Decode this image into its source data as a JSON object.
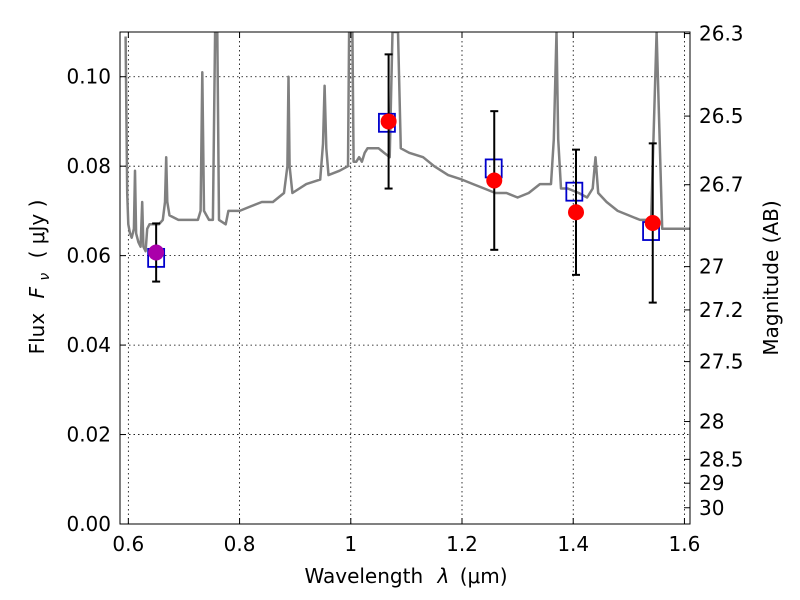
{
  "chart_data": {
    "type": "scatter",
    "xlabel_prefix": "Wavelength",
    "xlabel_symbol": "λ",
    "xlabel_unit": "(μm)",
    "ylabel_prefix": "Flux",
    "ylabel_symbol": "F",
    "ylabel_subscript": "ν",
    "ylabel_unit": "( μJy )",
    "y2label": "Magnitude (AB)",
    "xlim": [
      0.585,
      1.61
    ],
    "ylim": [
      0.0,
      0.11
    ],
    "grid": true,
    "x_ticks": [
      {
        "value": 0.6,
        "label": "0.6"
      },
      {
        "value": 0.8,
        "label": "0.8"
      },
      {
        "value": 1.0,
        "label": "1"
      },
      {
        "value": 1.2,
        "label": "1.2"
      },
      {
        "value": 1.4,
        "label": "1.4"
      },
      {
        "value": 1.6,
        "label": "1.6"
      }
    ],
    "y_ticks": [
      {
        "value": 0.0,
        "label": "0.00"
      },
      {
        "value": 0.02,
        "label": "0.02"
      },
      {
        "value": 0.04,
        "label": "0.04"
      },
      {
        "value": 0.06,
        "label": "0.06"
      },
      {
        "value": 0.08,
        "label": "0.08"
      },
      {
        "value": 0.1,
        "label": "0.10"
      }
    ],
    "y2_ticks": [
      {
        "mag": 26.3,
        "label": "26.3"
      },
      {
        "mag": 26.5,
        "label": "26.5"
      },
      {
        "mag": 26.7,
        "label": "26.7"
      },
      {
        "mag": 27.0,
        "label": "27"
      },
      {
        "mag": 27.2,
        "label": "27.2"
      },
      {
        "mag": 27.5,
        "label": "27.5"
      },
      {
        "mag": 28.0,
        "label": "28"
      },
      {
        "mag": 28.5,
        "label": "28.5"
      },
      {
        "mag": 29.0,
        "label": "29"
      },
      {
        "mag": 30.0,
        "label": "30"
      }
    ],
    "series": [
      {
        "kind": "line",
        "color": "#808080",
        "points": [
          [
            0.595,
            0.109
          ],
          [
            0.598,
            0.074
          ],
          [
            0.6,
            0.067
          ],
          [
            0.603,
            0.065
          ],
          [
            0.606,
            0.064
          ],
          [
            0.61,
            0.066
          ],
          [
            0.612,
            0.079
          ],
          [
            0.614,
            0.065
          ],
          [
            0.618,
            0.063
          ],
          [
            0.622,
            0.062
          ],
          [
            0.625,
            0.072
          ],
          [
            0.627,
            0.062
          ],
          [
            0.631,
            0.061
          ],
          [
            0.634,
            0.066
          ],
          [
            0.638,
            0.067
          ],
          [
            0.645,
            0.067
          ],
          [
            0.655,
            0.067
          ],
          [
            0.662,
            0.068
          ],
          [
            0.666,
            0.072
          ],
          [
            0.668,
            0.082
          ],
          [
            0.67,
            0.072
          ],
          [
            0.674,
            0.069
          ],
          [
            0.69,
            0.068
          ],
          [
            0.71,
            0.068
          ],
          [
            0.725,
            0.068
          ],
          [
            0.73,
            0.07
          ],
          [
            0.733,
            0.101
          ],
          [
            0.736,
            0.07
          ],
          [
            0.745,
            0.068
          ],
          [
            0.752,
            0.068
          ],
          [
            0.756,
            0.11
          ],
          [
            0.76,
            0.11
          ],
          [
            0.763,
            0.068
          ],
          [
            0.775,
            0.067
          ],
          [
            0.78,
            0.07
          ],
          [
            0.8,
            0.07
          ],
          [
            0.82,
            0.071
          ],
          [
            0.84,
            0.072
          ],
          [
            0.86,
            0.072
          ],
          [
            0.88,
            0.074
          ],
          [
            0.886,
            0.08
          ],
          [
            0.888,
            0.1
          ],
          [
            0.89,
            0.08
          ],
          [
            0.895,
            0.074
          ],
          [
            0.92,
            0.076
          ],
          [
            0.945,
            0.077
          ],
          [
            0.95,
            0.085
          ],
          [
            0.953,
            0.098
          ],
          [
            0.956,
            0.084
          ],
          [
            0.96,
            0.078
          ],
          [
            0.98,
            0.079
          ],
          [
            0.995,
            0.08
          ],
          [
            0.997,
            0.11
          ],
          [
            1.003,
            0.11
          ],
          [
            1.005,
            0.081
          ],
          [
            1.01,
            0.081
          ],
          [
            1.015,
            0.082
          ],
          [
            1.02,
            0.081
          ],
          [
            1.025,
            0.083
          ],
          [
            1.03,
            0.084
          ],
          [
            1.05,
            0.084
          ],
          [
            1.06,
            0.083
          ],
          [
            1.07,
            0.082
          ],
          [
            1.075,
            0.11
          ],
          [
            1.085,
            0.11
          ],
          [
            1.09,
            0.084
          ],
          [
            1.105,
            0.083
          ],
          [
            1.13,
            0.082
          ],
          [
            1.15,
            0.08
          ],
          [
            1.175,
            0.078
          ],
          [
            1.2,
            0.077
          ],
          [
            1.22,
            0.076
          ],
          [
            1.24,
            0.075
          ],
          [
            1.26,
            0.074
          ],
          [
            1.28,
            0.074
          ],
          [
            1.3,
            0.073
          ],
          [
            1.32,
            0.074
          ],
          [
            1.34,
            0.076
          ],
          [
            1.36,
            0.076
          ],
          [
            1.365,
            0.086
          ],
          [
            1.37,
            0.11
          ],
          [
            1.373,
            0.086
          ],
          [
            1.378,
            0.075
          ],
          [
            1.39,
            0.075
          ],
          [
            1.41,
            0.074
          ],
          [
            1.425,
            0.073
          ],
          [
            1.435,
            0.075
          ],
          [
            1.44,
            0.082
          ],
          [
            1.445,
            0.074
          ],
          [
            1.46,
            0.072
          ],
          [
            1.48,
            0.07
          ],
          [
            1.5,
            0.069
          ],
          [
            1.52,
            0.068
          ],
          [
            1.54,
            0.068
          ],
          [
            1.55,
            0.11
          ],
          [
            1.56,
            0.066
          ],
          [
            1.575,
            0.066
          ],
          [
            1.59,
            0.066
          ],
          [
            1.6,
            0.066
          ],
          [
            1.61,
            0.066
          ]
        ]
      },
      {
        "kind": "model-photometry",
        "marker": "open-square",
        "color": "#0000cc",
        "points": [
          [
            0.65,
            0.0595
          ],
          [
            1.065,
            0.0897
          ],
          [
            1.257,
            0.0795
          ],
          [
            1.402,
            0.0743
          ],
          [
            1.54,
            0.0655
          ]
        ]
      },
      {
        "kind": "observed-photometry",
        "marker": "filled-circle",
        "points": [
          {
            "x": 0.65,
            "y": 0.0607,
            "err": 0.0065,
            "color": "#aa00aa"
          },
          {
            "x": 1.068,
            "y": 0.09,
            "err": 0.015,
            "color": "#ff0000"
          },
          {
            "x": 1.258,
            "y": 0.0768,
            "err": 0.0155,
            "color": "#ff0000"
          },
          {
            "x": 1.405,
            "y": 0.0697,
            "err": 0.014,
            "color": "#ff0000"
          },
          {
            "x": 1.543,
            "y": 0.0673,
            "err": 0.0178,
            "color": "#ff0000"
          }
        ]
      }
    ]
  }
}
